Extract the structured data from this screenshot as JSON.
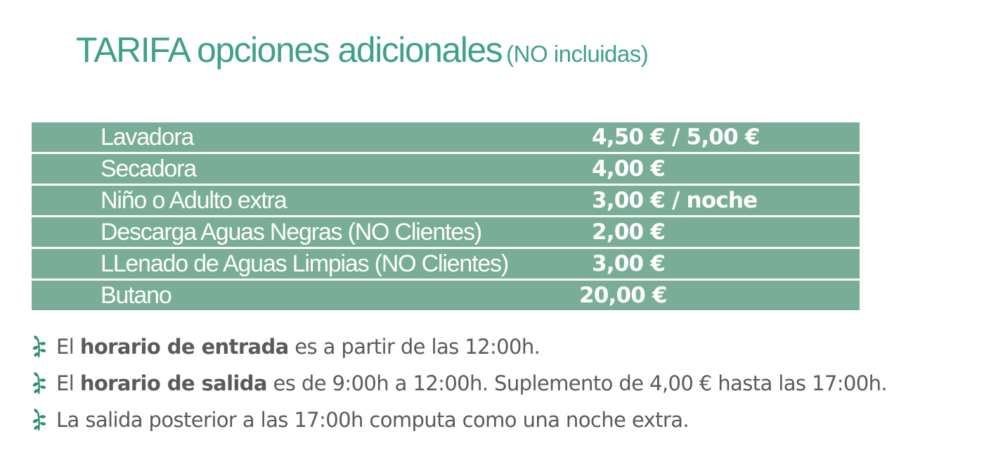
{
  "title": {
    "main": "TARIFA opciones adicionales",
    "sub": "(NO incluidas)"
  },
  "rates": [
    {
      "label": "Lavadora",
      "price": "4,50 € / 5,00 €"
    },
    {
      "label": "Secadora",
      "price": "4,00 €"
    },
    {
      "label": "Niño o Adulto extra",
      "price": "3,00 € / noche"
    },
    {
      "label": "Descarga Aguas Negras (NO Clientes)",
      "price": "2,00 €"
    },
    {
      "label": "LLenado de Aguas Limpias (NO Clientes)",
      "price": "3,00 €"
    },
    {
      "label": "Butano",
      "price": "20,00 €"
    }
  ],
  "notes": [
    {
      "pre": "El",
      "bold": "horario de entrada",
      "post": "es a partir de las 12:00h."
    },
    {
      "pre": "El",
      "bold": "horario de salida",
      "post": "es de 9:00h a 12:00h. Suplemento de 4,00 € hasta las 17:00h."
    },
    {
      "pre": "La salida posterior a las 17:00h computa como una noche extra.",
      "bold": "",
      "post": ""
    }
  ],
  "colors": {
    "title": "#3fa08a",
    "row_background": "#7aad98",
    "row_text": "#ffffff",
    "note_text": "#5a5a5a",
    "leaf_icon": "#2f8f6f"
  },
  "icons": {
    "bullet": "leaf-icon"
  }
}
